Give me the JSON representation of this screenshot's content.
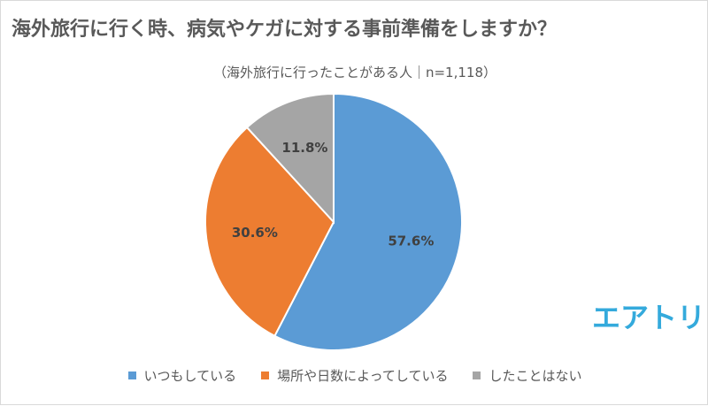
{
  "title": "海外旅行に行く時、病気やケガに対する事前準備をしますか？",
  "subtitle": "（海外旅行に行ったことがある人｜n=1,118）",
  "logo_text": "エアトリ",
  "chart_data": {
    "type": "pie",
    "categories": [
      "いつもしている",
      "場所や日数によってしている",
      "したことはない"
    ],
    "values": [
      57.6,
      30.6,
      11.8
    ],
    "data_labels": [
      "57.6%",
      "30.6%",
      "11.8%"
    ],
    "colors": [
      "#5b9bd5",
      "#ed7d31",
      "#a5a5a5"
    ],
    "start_angle_deg": 0,
    "direction": "clockwise",
    "legend_position": "bottom",
    "title": "海外旅行に行く時、病気やケガに対する事前準備をしますか？"
  },
  "legend": {
    "items": [
      {
        "label": "いつもしている",
        "color": "#5b9bd5"
      },
      {
        "label": "場所や日数によってしている",
        "color": "#ed7d31"
      },
      {
        "label": "したことはない",
        "color": "#a5a5a5"
      }
    ]
  }
}
